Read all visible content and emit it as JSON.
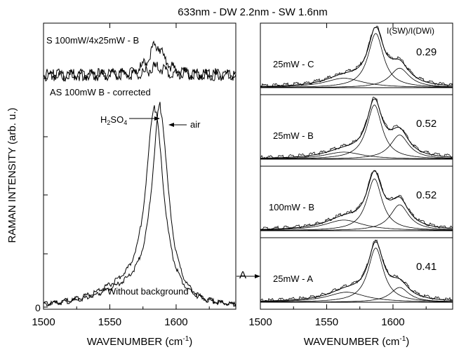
{
  "figure": {
    "title": "633nm - DW 2.2nm - SW 1.6nm",
    "ylabel": "RAMAN INTENSITY (arb. u.)",
    "ratio_header": "I(SW)/I(DWi)",
    "arrow_label_a": "A"
  },
  "chart_data": [
    {
      "type": "line",
      "panel": "left",
      "xlabel": "WAVENUMBER (cm",
      "xlabel_sup": "-1",
      "xlabel_end": ")",
      "ylabel": "RAMAN INTENSITY (arb. u.)",
      "xlim": [
        1500,
        1645
      ],
      "xticks": [
        1500,
        1550,
        1600
      ],
      "ytick_label": "0",
      "grid": false,
      "annotations": {
        "top_upper": "S 100mW/4x25mW - B",
        "top_lower": "AS 100mW B - corrected",
        "h2so4": "H",
        "h2so4_sub1": "2",
        "h2so4_mid": "SO",
        "h2so4_sub2": "4",
        "air": "air",
        "bottom": "Without background"
      },
      "series": [
        {
          "name": "H2SO4",
          "center": 1584,
          "width": 16,
          "amplitude": 0.93
        },
        {
          "name": "air",
          "center": 1588,
          "width": 15,
          "amplitude": 0.93
        }
      ],
      "top_series": {
        "center": 1585,
        "width": 14,
        "amplitude": 0.45
      }
    },
    {
      "type": "line",
      "panel": "right",
      "xlabel": "WAVENUMBER (cm",
      "xlabel_sup": "-1",
      "xlabel_end": ")",
      "xlim": [
        1500,
        1645
      ],
      "xticks": [
        1500,
        1550,
        1600
      ],
      "grid": false,
      "subpanels": [
        {
          "label": "25mW - C",
          "ratio": "0.29",
          "peaks": [
            {
              "center": 1587,
              "width": 14,
              "amp": 0.92
            },
            {
              "center": 1605,
              "width": 18,
              "amp": 0.33
            },
            {
              "center": 1563,
              "width": 35,
              "amp": 0.16
            }
          ]
        },
        {
          "label": "25mW - B",
          "ratio": "0.52",
          "peaks": [
            {
              "center": 1586,
              "width": 14,
              "amp": 0.92
            },
            {
              "center": 1605,
              "width": 17,
              "amp": 0.41
            },
            {
              "center": 1563,
              "width": 35,
              "amp": 0.12
            }
          ]
        },
        {
          "label": "100mW - B",
          "ratio": "0.52",
          "peaks": [
            {
              "center": 1586,
              "width": 14,
              "amp": 0.88
            },
            {
              "center": 1605,
              "width": 17,
              "amp": 0.44
            },
            {
              "center": 1563,
              "width": 35,
              "amp": 0.18
            }
          ]
        },
        {
          "label": "25mW - A",
          "ratio": "0.41",
          "peaks": [
            {
              "center": 1587,
              "width": 14,
              "amp": 0.92
            },
            {
              "center": 1605,
              "width": 17,
              "amp": 0.25
            },
            {
              "center": 1565,
              "width": 35,
              "amp": 0.17
            }
          ]
        }
      ]
    }
  ]
}
